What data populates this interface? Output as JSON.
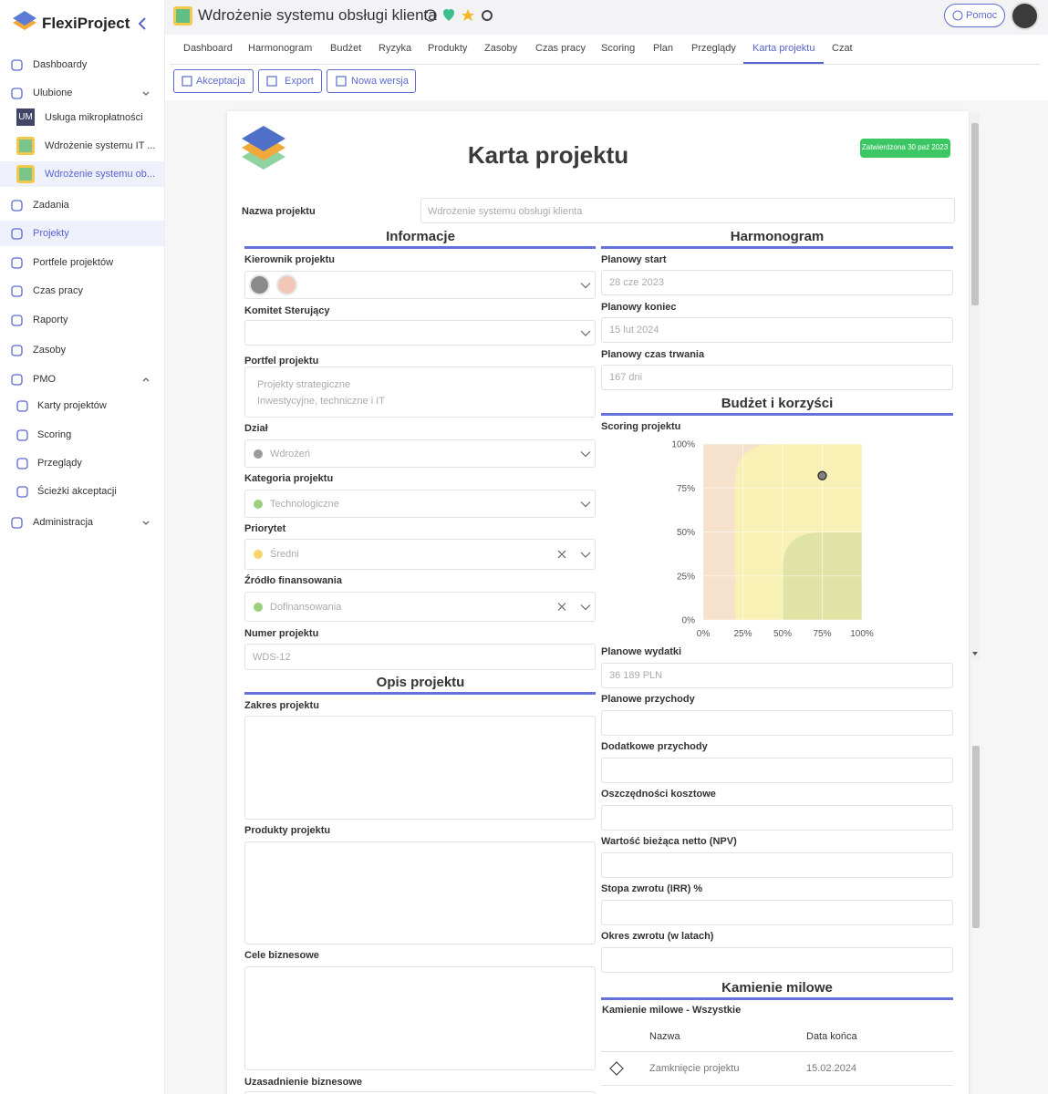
{
  "sidebar": {
    "brand": "FlexiProject",
    "badge": "UM",
    "items": [
      "Dashboardy",
      "Ulubione",
      "Usługa mikropłatności",
      "Wdrożenie systemu IT ...",
      "Wdrożenie systemu ob...",
      "Zadania",
      "Projekty",
      "Portfele projektów",
      "Czas pracy",
      "Raporty",
      "Zasoby",
      "PMO",
      "Karty projektów",
      "Scoring",
      "Przeglądy",
      "Ścieżki akceptacji",
      "Administracja"
    ]
  },
  "header": {
    "title": "Wdrożenie systemu obsługi klienta",
    "help": "Pomoc"
  },
  "tabs": {
    "items": [
      "Dashboard",
      "Harmonogram",
      "Budżet",
      "Ryzyka",
      "Produkty",
      "Zasoby",
      "Czas pracy",
      "Scoring",
      "Plan",
      "Przeglądy",
      "Karta projektu",
      "Czat"
    ],
    "active": 10
  },
  "toolbar": [
    "Akceptacja",
    "Export",
    "Nowa wersja"
  ],
  "form": {
    "title": "Karta projektu",
    "status": "Zatwierdzona 30 paź 2023",
    "name_label": "Nazwa projektu",
    "name_value": "Wdrożenie systemu obsługi klienta",
    "sections": [
      "Informacje",
      "Harmonogram",
      "Budżet i korzyści",
      "Opis projektu",
      "Kamienie milowe"
    ],
    "fields": [
      {
        "label": "Kierownik projektu"
      },
      {
        "label": "Komitet Sterujący"
      },
      {
        "label": "Portfel projektu",
        "value": [
          "Projekty strategiczne",
          "Inwestycyjne, techniczne i IT"
        ]
      },
      {
        "label": "Dział",
        "value": "Wdrożeń",
        "dot": "#9a9a9a"
      },
      {
        "label": "Kategoria projektu",
        "value": "Technologiczne",
        "dot": "#9ccf7f"
      },
      {
        "label": "Priorytet",
        "value": "Średni",
        "dot": "#f5d66b"
      },
      {
        "label": "Źródło finansowania",
        "value": "Dofinansowania",
        "dot": "#9ccf7f"
      },
      {
        "label": "Numer projektu",
        "value": "WDS-12"
      },
      {
        "label": "Zakres projektu"
      },
      {
        "label": "Produkty projektu"
      },
      {
        "label": "Cele biznesowe"
      },
      {
        "label": "Uzasadnienie biznesowe"
      },
      {
        "label": "Planowy start",
        "value": "28 cze 2023"
      },
      {
        "label": "Planowy koniec",
        "value": "15 lut 2024"
      },
      {
        "label": "Planowy czas trwania",
        "value": "167 dni"
      },
      {
        "label": "Scoring projektu"
      },
      {
        "label": "Planowe wydatki",
        "value": "36 189 PLN"
      },
      {
        "label": "Planowe przychody"
      },
      {
        "label": "Dodatkowe przychody"
      },
      {
        "label": "Oszczędności kosztowe"
      },
      {
        "label": "Wartość bieżąca netto (NPV)"
      },
      {
        "label": "Stopa zwrotu (IRR) %"
      },
      {
        "label": "Okres zwrotu (w latach)"
      }
    ]
  },
  "milestones": {
    "subtitle": "Kamienie milowe - Wszystkie",
    "columns": [
      "Nazwa",
      "Data końca"
    ],
    "rows": [
      [
        "Zamknięcie projektu",
        "15.02.2024"
      ]
    ]
  },
  "chart_data": {
    "type": "scatter",
    "x": [
      75
    ],
    "y": [
      82
    ],
    "color": "#808080",
    "xlim": [
      0,
      100
    ],
    "ylim": [
      0,
      100
    ],
    "xticks": [
      {
        "value": 0,
        "label": "0%"
      },
      {
        "value": 25,
        "label": "25%"
      },
      {
        "value": 50,
        "label": "50%"
      },
      {
        "value": 75,
        "label": "75%"
      },
      {
        "value": 100,
        "label": "100%"
      }
    ],
    "yticks": [
      {
        "value": 0,
        "label": "0%"
      },
      {
        "value": 25,
        "label": "25%"
      },
      {
        "value": 50,
        "label": "50%"
      },
      {
        "value": 75,
        "label": "75%"
      },
      {
        "value": 100,
        "label": "100%"
      }
    ],
    "grid": true
  }
}
